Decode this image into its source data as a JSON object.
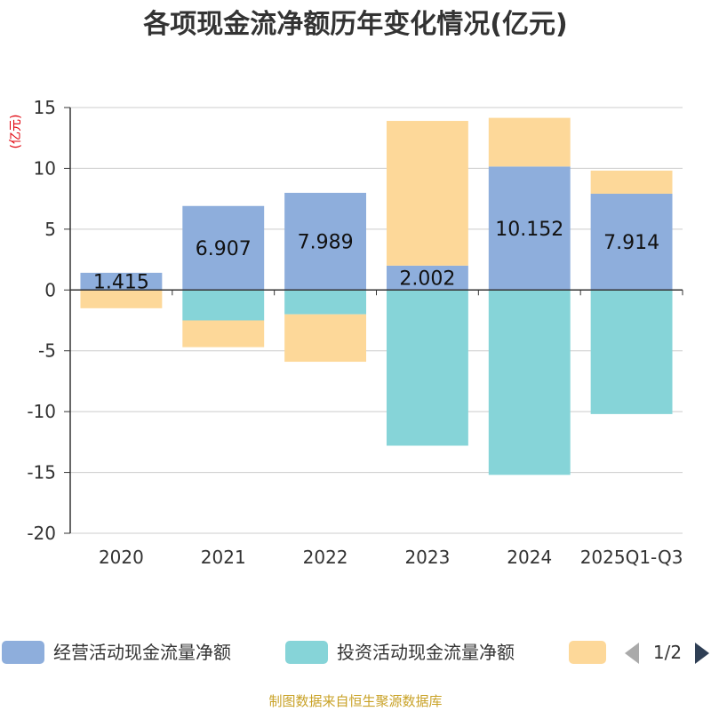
{
  "title": "各项现金流净额历年变化情况(亿元)",
  "unit_label": "(亿元)",
  "source": "制图数据来自恒生聚源数据库",
  "legend": {
    "items": [
      "经营活动现金流量净额",
      "投资活动现金流量净额",
      ""
    ],
    "page": "1/2"
  },
  "colors": {
    "operating": "#8eaedc",
    "investing": "#86d4d8",
    "financing": "#fdd899"
  },
  "chart_data": {
    "type": "bar",
    "stacked": true,
    "title": "各项现金流净额历年变化情况(亿元)",
    "ylabel": "(亿元)",
    "ylim": [
      -20,
      15
    ],
    "yticks": [
      15,
      10,
      5,
      0,
      -5,
      -10,
      -15,
      -20
    ],
    "categories": [
      "2020",
      "2021",
      "2022",
      "2023",
      "2024",
      "2025Q1-Q3"
    ],
    "series": [
      {
        "name": "经营活动现金流量净额",
        "values": [
          1.415,
          6.907,
          7.989,
          2.002,
          10.152,
          7.914
        ],
        "show_labels": true
      },
      {
        "name": "投资活动现金流量净额",
        "values": [
          0,
          -2.5,
          -2.0,
          -12.8,
          -15.2,
          -10.2
        ],
        "show_labels": false
      },
      {
        "name": "",
        "values": [
          -1.5,
          -2.2,
          -3.9,
          11.9,
          4.0,
          1.9
        ],
        "show_labels": false
      }
    ]
  }
}
